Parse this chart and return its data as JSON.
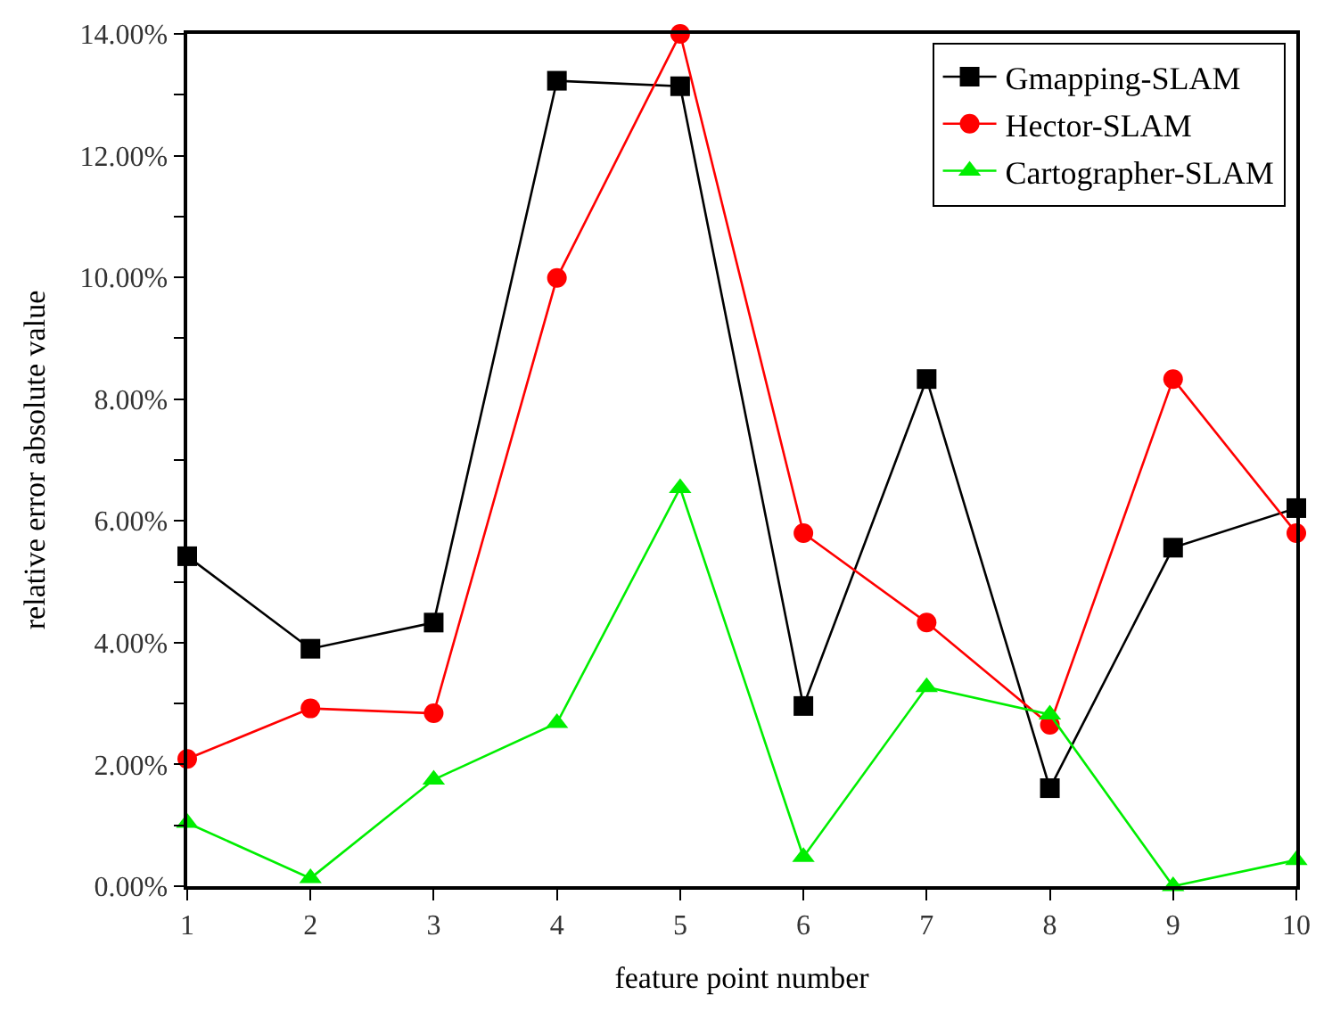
{
  "chart_data": {
    "type": "line",
    "xlabel": "feature point number",
    "ylabel": "relative error absolute value",
    "x": [
      1,
      2,
      3,
      4,
      5,
      6,
      7,
      8,
      9,
      10
    ],
    "series": [
      {
        "name": "Gmapping-SLAM",
        "color": "#000000",
        "marker": "square",
        "values": [
          5.42,
          3.9,
          4.33,
          13.23,
          13.14,
          2.96,
          8.33,
          1.61,
          5.56,
          6.21
        ]
      },
      {
        "name": "Hector-SLAM",
        "color": "#ff0000",
        "marker": "circle",
        "values": [
          2.09,
          2.92,
          2.84,
          9.99,
          14.0,
          5.8,
          4.33,
          2.65,
          8.33,
          5.8
        ]
      },
      {
        "name": "Cartographer-SLAM",
        "color": "#00ee00",
        "marker": "triangle",
        "values": [
          1.04,
          0.13,
          1.75,
          2.68,
          6.54,
          0.48,
          3.27,
          2.82,
          0.0,
          0.43
        ]
      }
    ],
    "xlim": [
      1,
      10
    ],
    "xticks": [
      1,
      2,
      3,
      4,
      5,
      6,
      7,
      8,
      9,
      10
    ],
    "ylim": [
      0,
      14
    ],
    "yticks": [
      {
        "value": 0,
        "label": "0.00%"
      },
      {
        "value": 1,
        "label": null
      },
      {
        "value": 2,
        "label": "2.00%"
      },
      {
        "value": 3,
        "label": null
      },
      {
        "value": 4,
        "label": "4.00%"
      },
      {
        "value": 5,
        "label": null
      },
      {
        "value": 6,
        "label": "6.00%"
      },
      {
        "value": 7,
        "label": null
      },
      {
        "value": 8,
        "label": "8.00%"
      },
      {
        "value": 9,
        "label": null
      },
      {
        "value": 10,
        "label": "10.00%"
      },
      {
        "value": 11,
        "label": null
      },
      {
        "value": 12,
        "label": "12.00%"
      },
      {
        "value": 13,
        "label": null
      },
      {
        "value": 14,
        "label": "14.00%"
      }
    ],
    "legend": "top right",
    "line_style": "solid"
  }
}
